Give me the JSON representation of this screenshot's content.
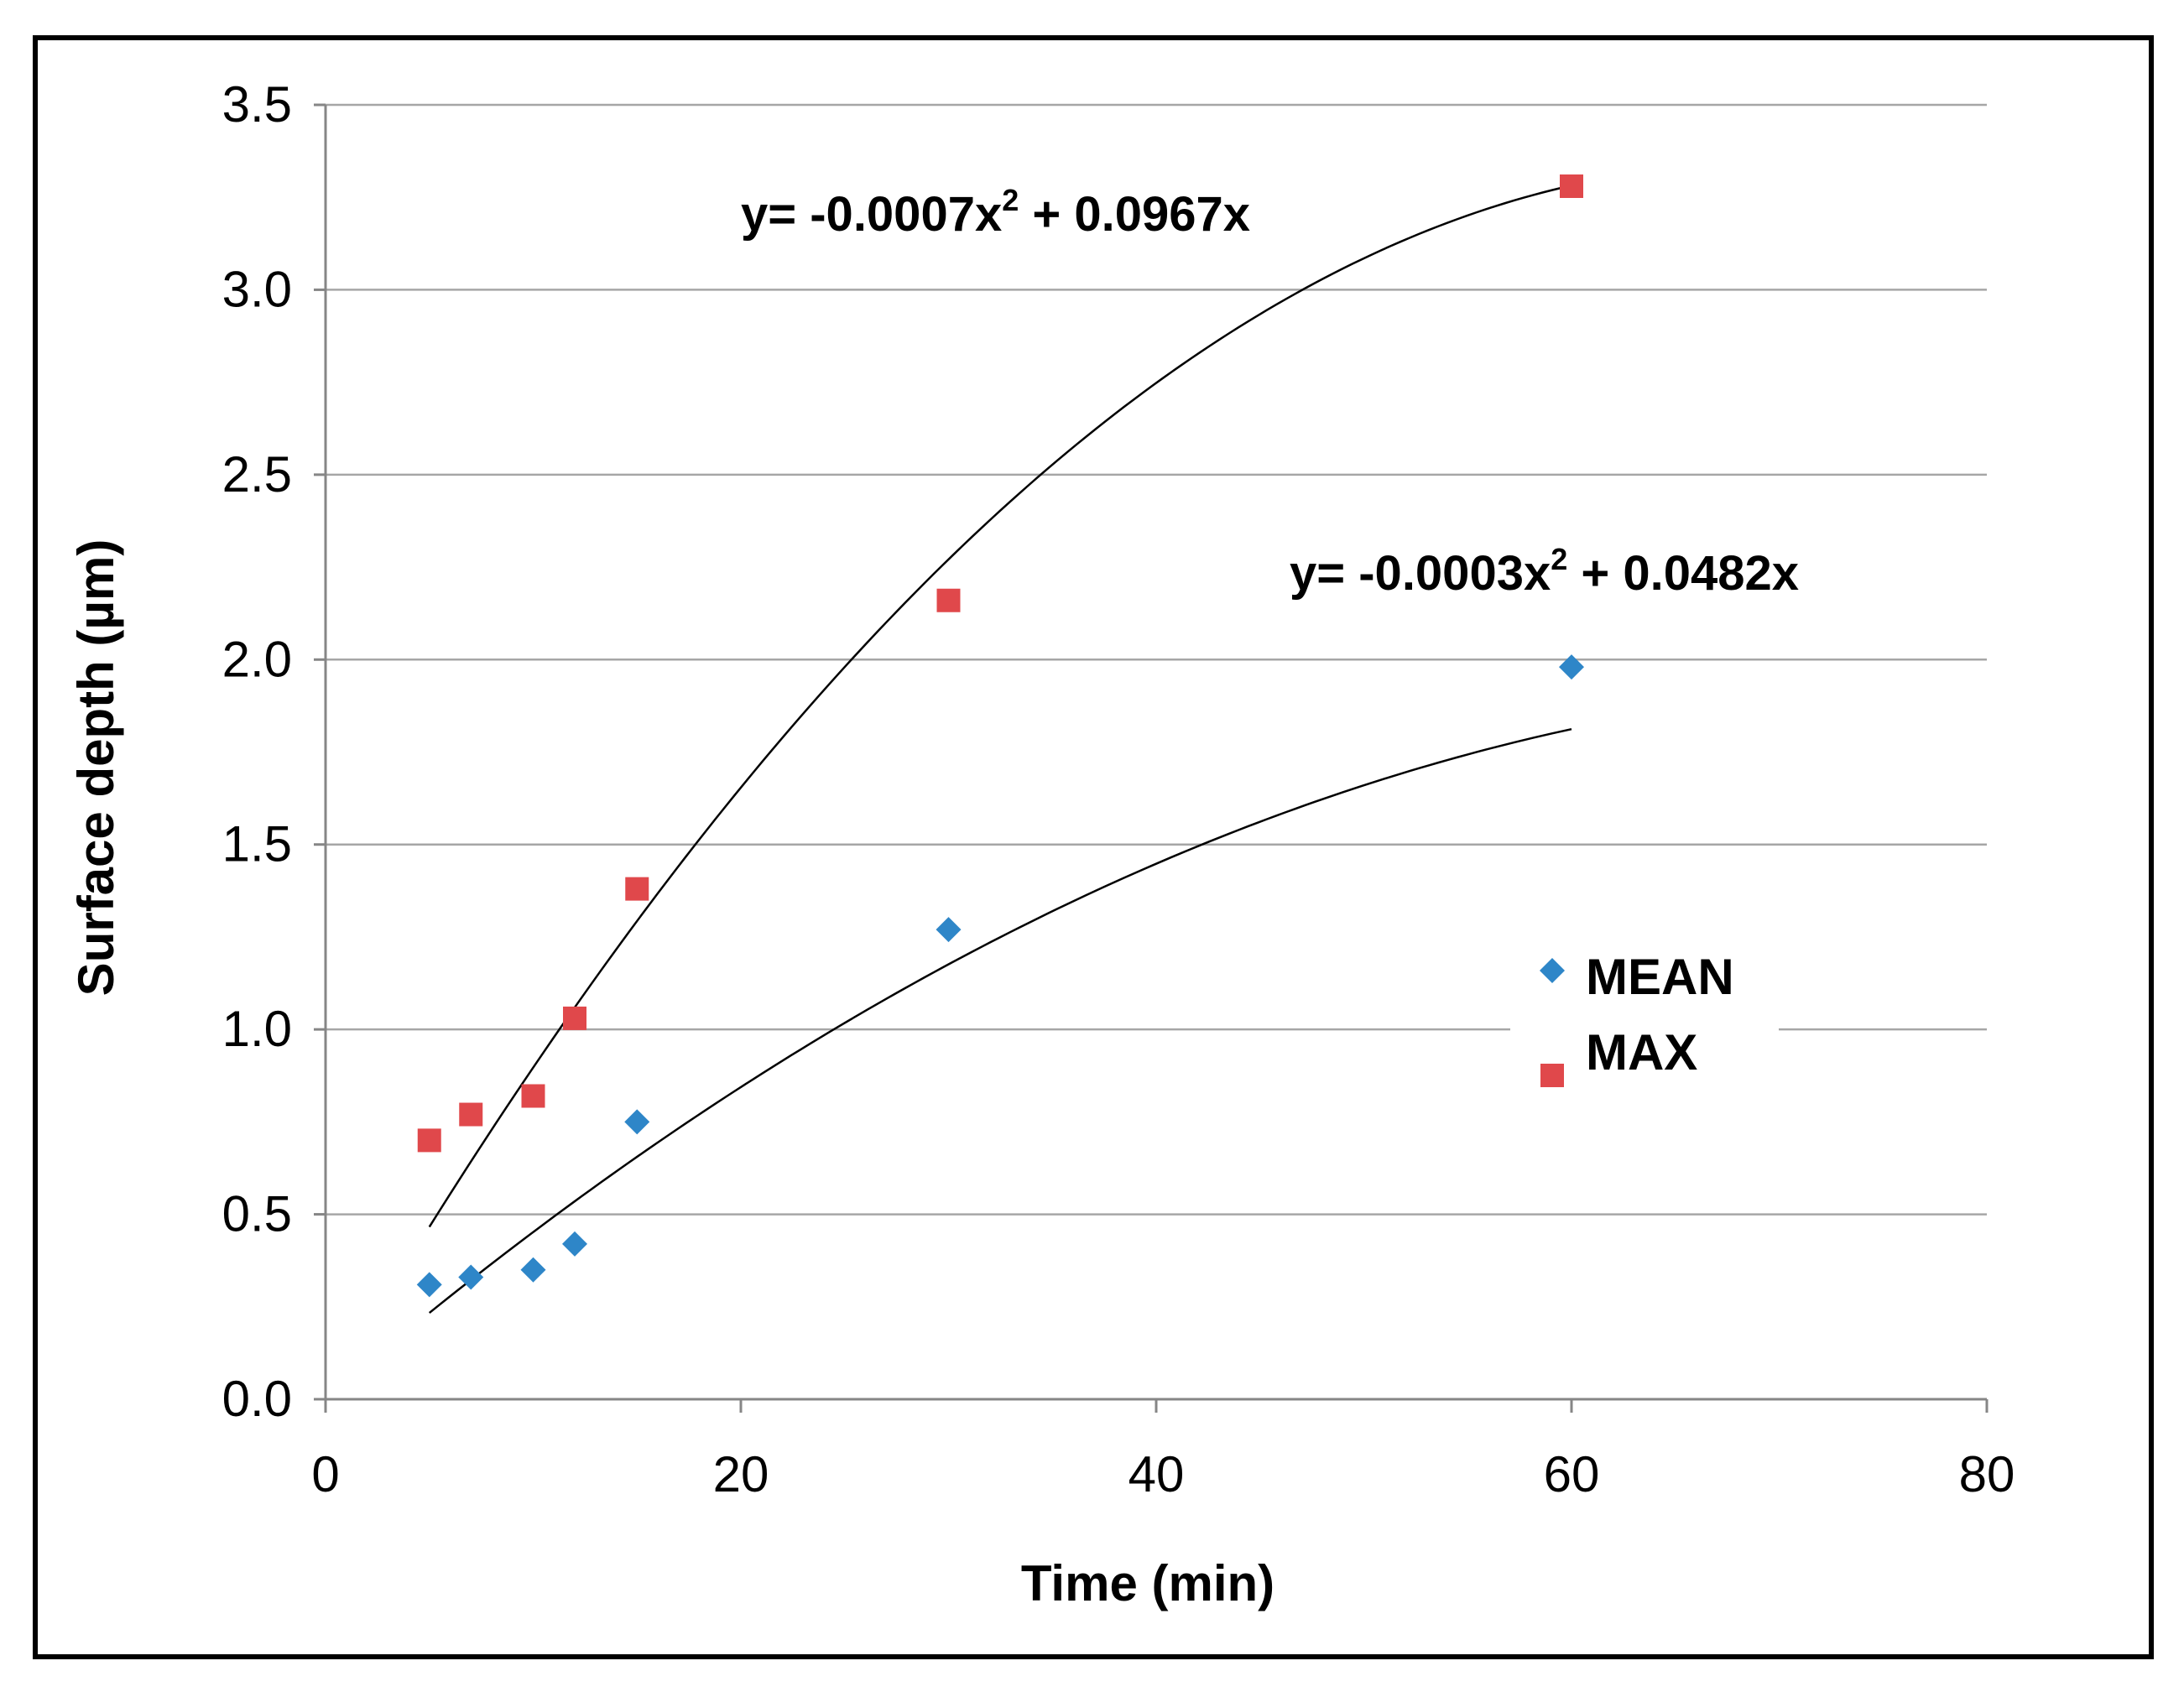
{
  "chart_data": {
    "type": "scatter",
    "title": "",
    "xlabel": "Time (min)",
    "ylabel": "Surface depth (µm)",
    "xlim": [
      0,
      80
    ],
    "ylim": [
      0.0,
      3.5
    ],
    "x_ticks": [
      "0",
      "20",
      "40",
      "60",
      "80"
    ],
    "y_ticks": [
      "0.0",
      "0.5",
      "1.0",
      "1.5",
      "2.0",
      "2.5",
      "3.0",
      "3.5"
    ],
    "grid": true,
    "legend_position": "right-center",
    "series": [
      {
        "name": "MEAN",
        "marker": "diamond",
        "color": "#2e86c8",
        "x": [
          5,
          7,
          10,
          12,
          15,
          30,
          60
        ],
        "y": [
          0.31,
          0.33,
          0.35,
          0.42,
          0.75,
          1.27,
          1.98
        ],
        "trendline": {
          "equation_prefix": "y= -0.0003x",
          "equation_exp": "2",
          "equation_suffix": " + 0.0482x",
          "a": -0.0003,
          "b": 0.0482,
          "x_range": [
            5,
            60
          ]
        }
      },
      {
        "name": "MAX",
        "marker": "square",
        "color": "#e0484b",
        "x": [
          5,
          7,
          10,
          12,
          15,
          30,
          60
        ],
        "y": [
          0.7,
          0.77,
          0.82,
          1.03,
          1.38,
          2.16,
          3.28
        ],
        "trendline": {
          "equation_prefix": "y= -0.0007x",
          "equation_exp": "2",
          "equation_suffix": " + 0.0967x",
          "a": -0.0007,
          "b": 0.0967,
          "x_range": [
            5,
            60
          ]
        }
      }
    ]
  }
}
